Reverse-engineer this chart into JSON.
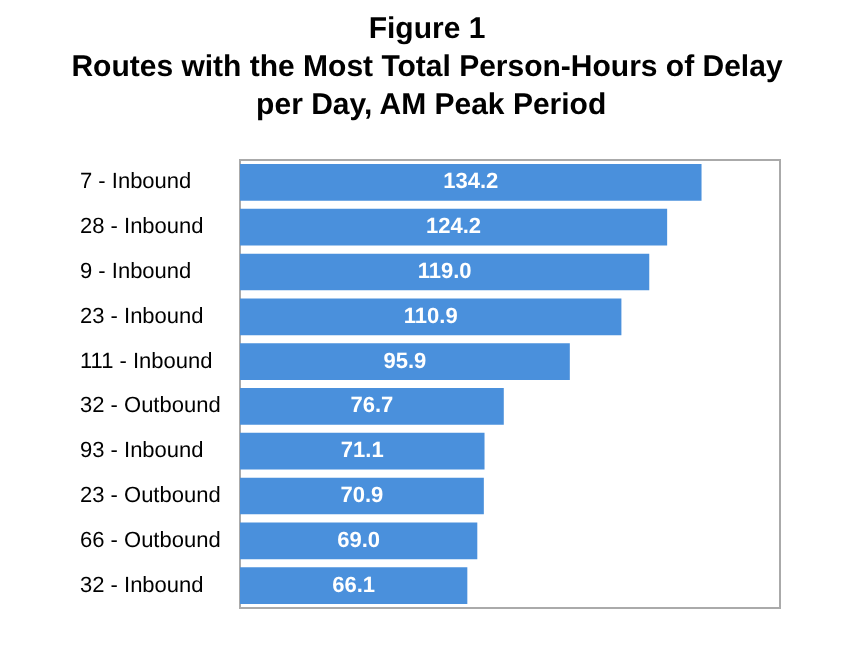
{
  "chart_data": {
    "type": "bar",
    "orientation": "horizontal",
    "title": "Figure 1",
    "subtitle": "Routes with the Most Total Person-Hours of Delay per Day, AM Peak Period",
    "categories": [
      "7 - Inbound",
      "28 - Inbound",
      "9 - Inbound",
      "23 - Inbound",
      "111 - Inbound",
      "32 - Outbound",
      "93 - Inbound",
      "23 - Outbound",
      "66 - Outbound",
      "32 - Inbound"
    ],
    "values": [
      134.2,
      124.2,
      119.0,
      110.9,
      95.9,
      76.7,
      71.1,
      70.9,
      69.0,
      66.1
    ],
    "value_labels": [
      "134.2",
      "124.2",
      "119.0",
      "110.9",
      "95.9",
      "76.7",
      "71.1",
      "70.9",
      "69.0",
      "66.1"
    ],
    "color": "#4a90dc"
  }
}
